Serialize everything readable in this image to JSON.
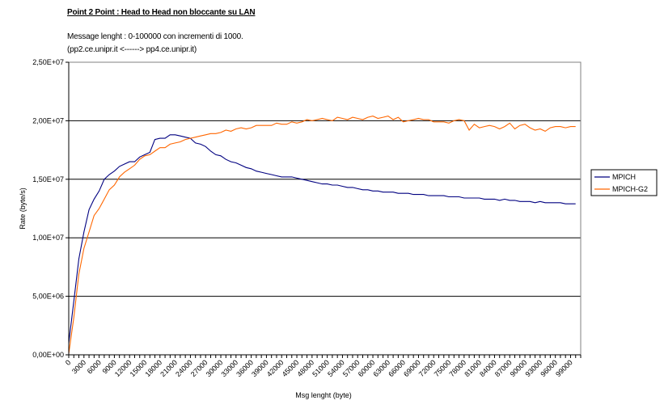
{
  "chart_data": {
    "type": "line",
    "title": "Point 2 Point  :  Head to Head non bloccante su LAN",
    "subtitle_lines": [
      "Message lenght :  0-100000 con incrementi di 1000.",
      "(pp2.ce.unipr.it    <------>  pp4.ce.unipr.it)"
    ],
    "xlabel": "Msg lenght (byte)",
    "ylabel": "Rate (byte/s)",
    "ylim": [
      0,
      25000000
    ],
    "yticks": [
      0,
      5000000,
      10000000,
      15000000,
      20000000,
      25000000
    ],
    "ytick_labels": [
      "0,00E+00",
      "5,00E+06",
      "1,00E+07",
      "1,50E+07",
      "2,00E+07",
      "2,50E+07"
    ],
    "x_step": 1000,
    "x_range": [
      0,
      100000
    ],
    "xtick_labels": [
      "0",
      "3000",
      "6000",
      "9000",
      "12000",
      "15000",
      "18000",
      "21000",
      "24000",
      "27000",
      "30000",
      "33000",
      "36000",
      "39000",
      "42000",
      "45000",
      "48000",
      "51000",
      "54000",
      "57000",
      "60000",
      "63000",
      "66000",
      "69000",
      "72000",
      "75000",
      "78000",
      "81000",
      "84000",
      "87000",
      "90000",
      "93000",
      "96000",
      "99000"
    ],
    "grid": "horizontal",
    "legend_position": "right",
    "series": [
      {
        "name": "MPICH",
        "color": "#000080",
        "values": [
          1000000.0,
          4600000.0,
          8200000.0,
          10500000.0,
          12400000.0,
          13300000.0,
          14000000.0,
          15000000.0,
          15400000.0,
          15700000.0,
          16100000.0,
          16300000.0,
          16500000.0,
          16500000.0,
          16900000.0,
          17100000.0,
          17300000.0,
          18400000.0,
          18500000.0,
          18500000.0,
          18800000.0,
          18800000.0,
          18700000.0,
          18600000.0,
          18500000.0,
          18100000.0,
          18000000.0,
          17800000.0,
          17400000.0,
          17100000.0,
          17000000.0,
          16700000.0,
          16500000.0,
          16400000.0,
          16200000.0,
          16000000.0,
          15900000.0,
          15700000.0,
          15600000.0,
          15500000.0,
          15400000.0,
          15300000.0,
          15200000.0,
          15200000.0,
          15200000.0,
          15100000.0,
          15000000.0,
          14900000.0,
          14800000.0,
          14700000.0,
          14600000.0,
          14600000.0,
          14500000.0,
          14500000.0,
          14400000.0,
          14300000.0,
          14300000.0,
          14200000.0,
          14100000.0,
          14100000.0,
          14000000.0,
          14000000.0,
          13900000.0,
          13900000.0,
          13900000.0,
          13800000.0,
          13800000.0,
          13800000.0,
          13700000.0,
          13700000.0,
          13700000.0,
          13600000.0,
          13600000.0,
          13600000.0,
          13600000.0,
          13500000.0,
          13500000.0,
          13500000.0,
          13400000.0,
          13400000.0,
          13400000.0,
          13400000.0,
          13300000.0,
          13300000.0,
          13300000.0,
          13200000.0,
          13300000.0,
          13200000.0,
          13200000.0,
          13100000.0,
          13100000.0,
          13100000.0,
          13000000.0,
          13100000.0,
          13000000.0,
          13000000.0,
          13000000.0,
          13000000.0,
          12900000.0,
          12900000.0,
          12900000.0
        ]
      },
      {
        "name": "MPICH-G2",
        "color": "#FF6600",
        "values": [
          100000.0,
          3200000.0,
          6900000.0,
          9100000.0,
          10500000.0,
          11900000.0,
          12500000.0,
          13300000.0,
          14100000.0,
          14500000.0,
          15200000.0,
          15600000.0,
          15900000.0,
          16200000.0,
          16700000.0,
          17000000.0,
          17100000.0,
          17400000.0,
          17700000.0,
          17700000.0,
          18000000.0,
          18100000.0,
          18200000.0,
          18400000.0,
          18500000.0,
          18600000.0,
          18700000.0,
          18800000.0,
          18900000.0,
          18900000.0,
          19000000.0,
          19200000.0,
          19100000.0,
          19300000.0,
          19400000.0,
          19300000.0,
          19400000.0,
          19600000.0,
          19600000.0,
          19600000.0,
          19600000.0,
          19800000.0,
          19700000.0,
          19700000.0,
          19900000.0,
          19800000.0,
          19900000.0,
          20100000.0,
          20000000.0,
          20100000.0,
          20200000.0,
          20100000.0,
          20000000.0,
          20300000.0,
          20200000.0,
          20100000.0,
          20300000.0,
          20200000.0,
          20100000.0,
          20300000.0,
          20400000.0,
          20200000.0,
          20300000.0,
          20400000.0,
          20100000.0,
          20300000.0,
          19900000.0,
          20000000.0,
          20100000.0,
          20200000.0,
          20100000.0,
          20100000.0,
          19900000.0,
          19900000.0,
          19900000.0,
          19800000.0,
          20000000.0,
          20100000.0,
          20000000.0,
          19200000.0,
          19700000.0,
          19400000.0,
          19500000.0,
          19600000.0,
          19500000.0,
          19300000.0,
          19500000.0,
          19800000.0,
          19300000.0,
          19600000.0,
          19700000.0,
          19400000.0,
          19200000.0,
          19300000.0,
          19100000.0,
          19400000.0,
          19500000.0,
          19500000.0,
          19400000.0,
          19500000.0,
          19500000.0
        ]
      }
    ]
  }
}
